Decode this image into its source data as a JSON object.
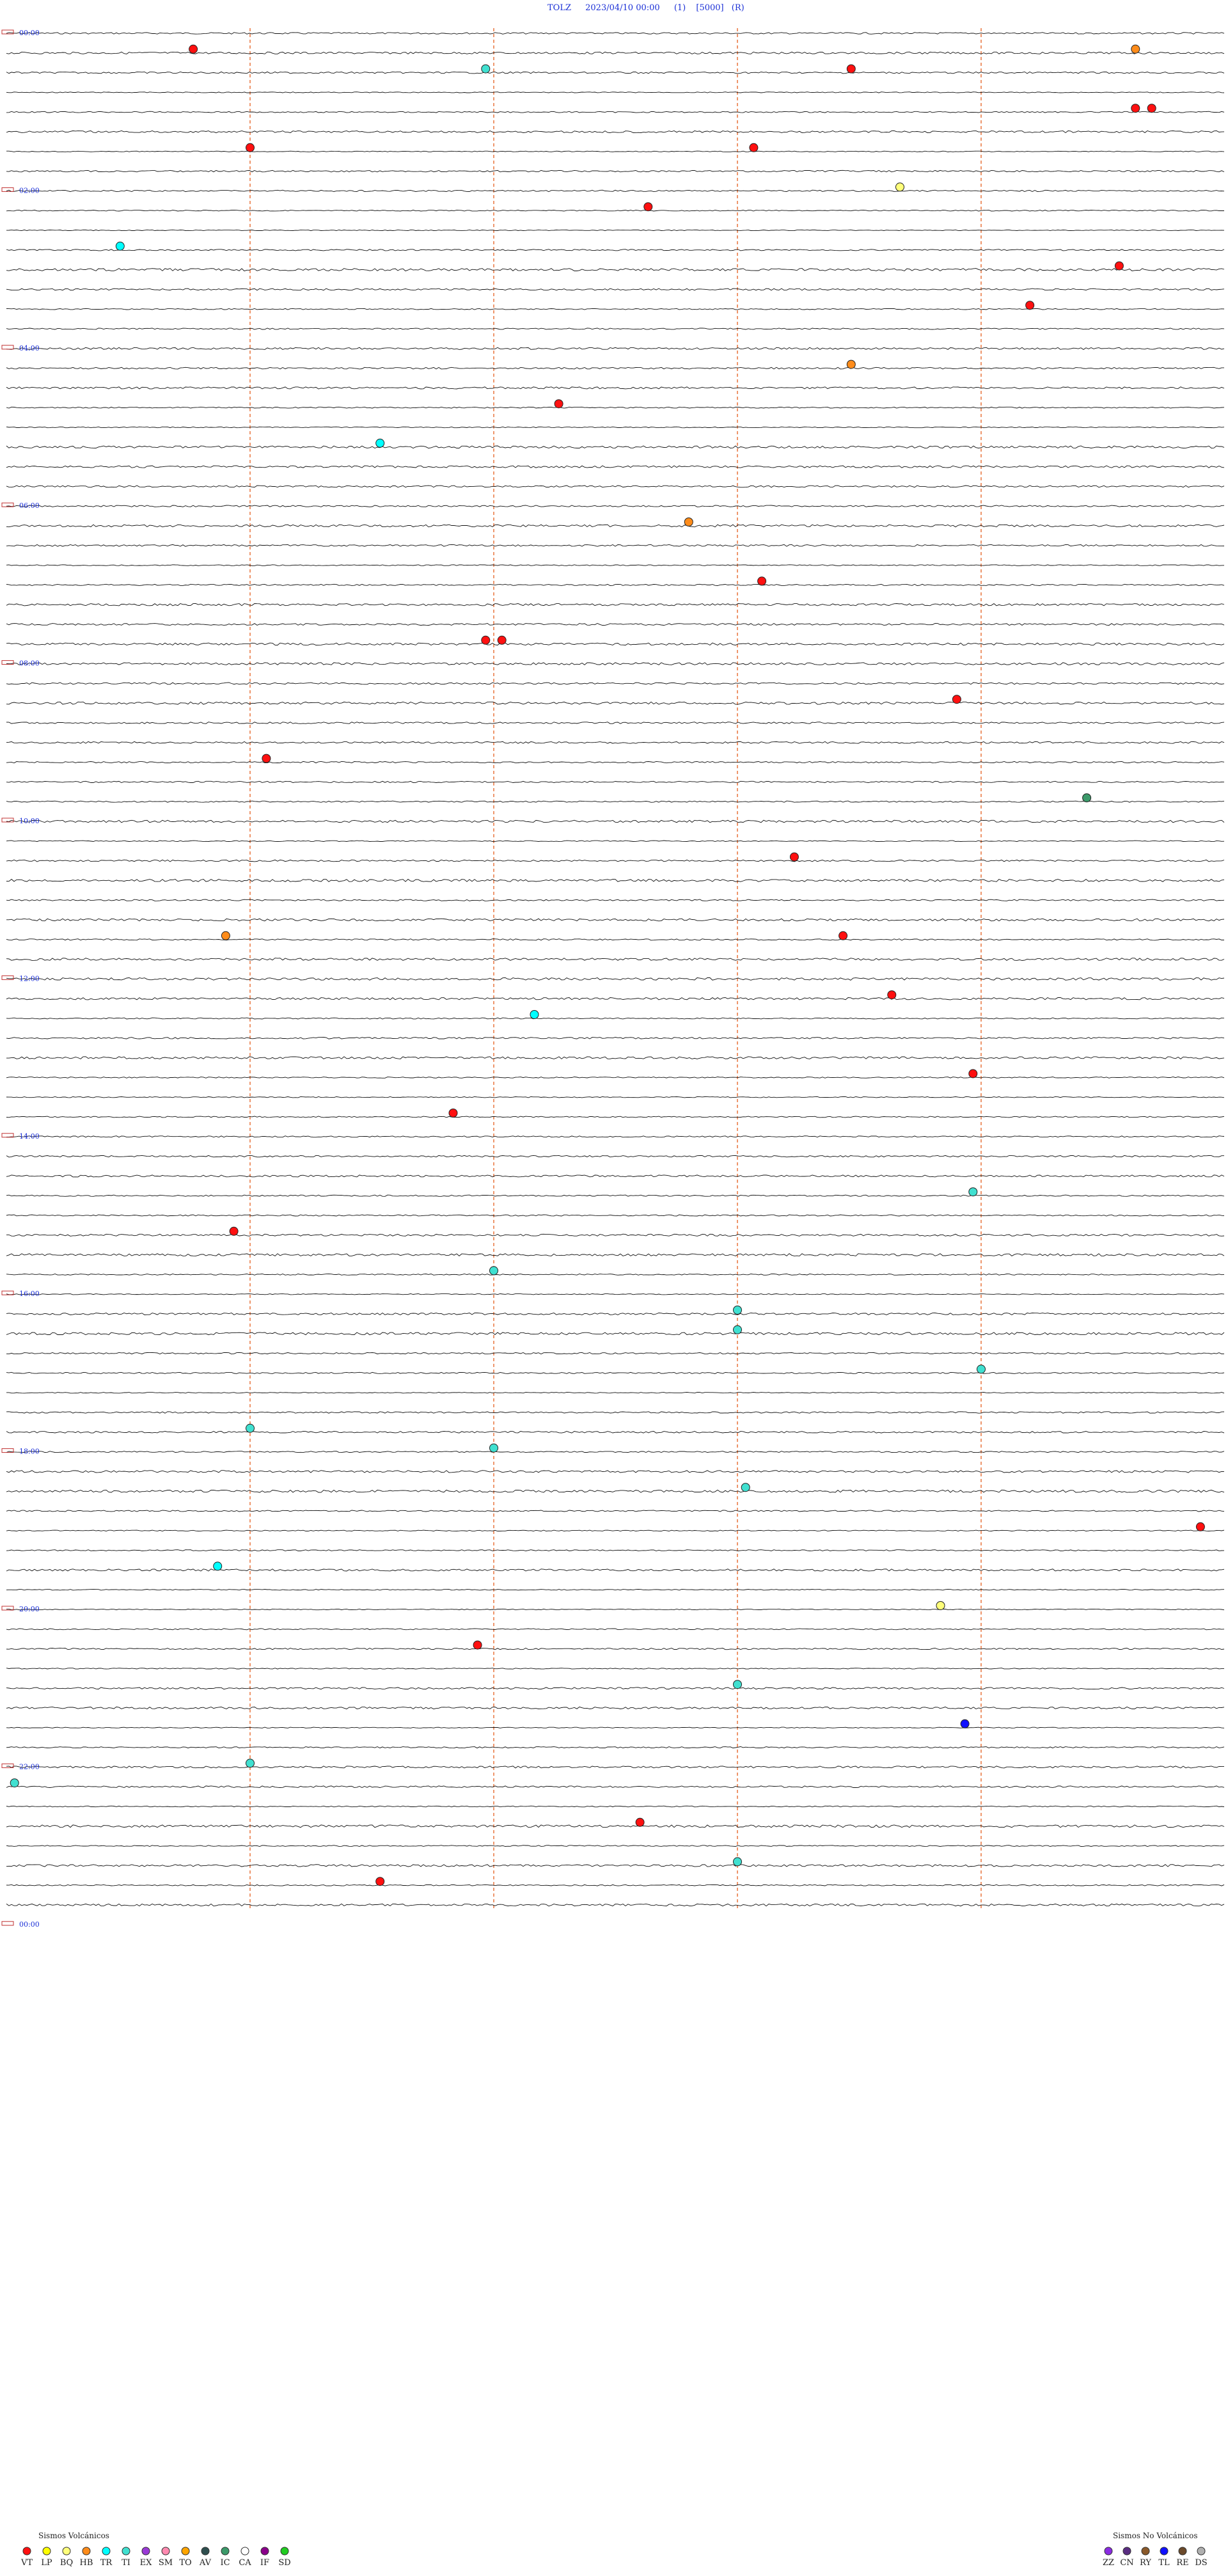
{
  "header": {
    "station": "TOLZ",
    "datetime": "2023/04/10 00:00",
    "flag1": "(1)",
    "scale": "[5000]",
    "flag2": "(R)"
  },
  "chart_data": {
    "type": "helicorder",
    "title": "",
    "xlabel": "",
    "ylabel": "",
    "minutes_per_line": 15,
    "num_lines": 96,
    "hour_labels": [
      "00:00",
      "02:00",
      "04:00",
      "06:00",
      "08:00",
      "10:00",
      "12:00",
      "14:00",
      "16:00",
      "18:00",
      "20:00",
      "22:00",
      "00:00"
    ],
    "minute_markers": [
      3,
      6,
      9,
      12
    ],
    "colors": {
      "trace": "#111111",
      "marker_line": "#e8743b",
      "hour_text": "#1a2fd6",
      "title": "#1a2fd6"
    },
    "events": [
      {
        "line": 1,
        "min": 2.3,
        "type": "VT"
      },
      {
        "line": 1,
        "min": 13.9,
        "type": "HB"
      },
      {
        "line": 2,
        "min": 5.9,
        "type": "TI"
      },
      {
        "line": 2,
        "min": 10.4,
        "type": "VT"
      },
      {
        "line": 4,
        "min": 13.9,
        "type": "VT"
      },
      {
        "line": 4,
        "min": 14.1,
        "type": "VT"
      },
      {
        "line": 6,
        "min": 3.0,
        "type": "VT"
      },
      {
        "line": 6,
        "min": 9.2,
        "type": "VT"
      },
      {
        "line": 8,
        "min": 11.0,
        "type": "BQ"
      },
      {
        "line": 9,
        "min": 7.9,
        "type": "VT"
      },
      {
        "line": 11,
        "min": 1.4,
        "type": "TR"
      },
      {
        "line": 12,
        "min": 13.7,
        "type": "VT"
      },
      {
        "line": 14,
        "min": 12.6,
        "type": "VT"
      },
      {
        "line": 17,
        "min": 10.4,
        "type": "HB"
      },
      {
        "line": 19,
        "min": 6.8,
        "type": "VT"
      },
      {
        "line": 21,
        "min": 4.6,
        "type": "TR"
      },
      {
        "line": 25,
        "min": 8.4,
        "type": "HB"
      },
      {
        "line": 28,
        "min": 9.3,
        "type": "VT"
      },
      {
        "line": 31,
        "min": 5.9,
        "type": "VT"
      },
      {
        "line": 31,
        "min": 6.1,
        "type": "VT"
      },
      {
        "line": 34,
        "min": 11.7,
        "type": "VT"
      },
      {
        "line": 37,
        "min": 3.2,
        "type": "VT"
      },
      {
        "line": 39,
        "min": 13.3,
        "type": "IC"
      },
      {
        "line": 42,
        "min": 9.7,
        "type": "VT"
      },
      {
        "line": 46,
        "min": 2.7,
        "type": "HB"
      },
      {
        "line": 46,
        "min": 10.3,
        "type": "VT"
      },
      {
        "line": 49,
        "min": 10.9,
        "type": "VT"
      },
      {
        "line": 50,
        "min": 6.5,
        "type": "TR"
      },
      {
        "line": 53,
        "min": 11.9,
        "type": "VT"
      },
      {
        "line": 55,
        "min": 5.5,
        "type": "VT"
      },
      {
        "line": 59,
        "min": 11.9,
        "type": "TI"
      },
      {
        "line": 61,
        "min": 2.8,
        "type": "VT"
      },
      {
        "line": 63,
        "min": 6.0,
        "type": "TI"
      },
      {
        "line": 65,
        "min": 9.0,
        "type": "TI"
      },
      {
        "line": 66,
        "min": 9.0,
        "type": "TI"
      },
      {
        "line": 68,
        "min": 12.0,
        "type": "TI"
      },
      {
        "line": 71,
        "min": 3.0,
        "type": "TI"
      },
      {
        "line": 72,
        "min": 6.0,
        "type": "TI"
      },
      {
        "line": 74,
        "min": 9.1,
        "type": "TI"
      },
      {
        "line": 76,
        "min": 14.7,
        "type": "VT"
      },
      {
        "line": 78,
        "min": 2.6,
        "type": "TR"
      },
      {
        "line": 80,
        "min": 11.5,
        "type": "BQ"
      },
      {
        "line": 82,
        "min": 5.8,
        "type": "VT"
      },
      {
        "line": 84,
        "min": 9.0,
        "type": "TI"
      },
      {
        "line": 86,
        "min": 11.8,
        "type": "TL"
      },
      {
        "line": 88,
        "min": 3.0,
        "type": "TI"
      },
      {
        "line": 89,
        "min": 0.1,
        "type": "TI"
      },
      {
        "line": 91,
        "min": 7.8,
        "type": "VT"
      },
      {
        "line": 93,
        "min": 9.0,
        "type": "TI"
      },
      {
        "line": 94,
        "min": 4.6,
        "type": "VT"
      }
    ],
    "legend_volcanic": {
      "title": "Sismos Volcánicos",
      "items": [
        {
          "code": "VT",
          "color": "#ff1010"
        },
        {
          "code": "LP",
          "color": "#ffff00"
        },
        {
          "code": "BQ",
          "color": "#ffff7a"
        },
        {
          "code": "HB",
          "color": "#ff8c1a"
        },
        {
          "code": "TR",
          "color": "#00ffff"
        },
        {
          "code": "TI",
          "color": "#40e0d0"
        },
        {
          "code": "EX",
          "color": "#9a3ad6"
        },
        {
          "code": "SM",
          "color": "#ff8ab0"
        },
        {
          "code": "TO",
          "color": "#ffa500"
        },
        {
          "code": "AV",
          "color": "#2f4f4f"
        },
        {
          "code": "IC",
          "color": "#3c9a6a"
        },
        {
          "code": "CA",
          "color": "#ffffff"
        },
        {
          "code": "IF",
          "color": "#8b008b"
        },
        {
          "code": "SD",
          "color": "#22cc22"
        }
      ]
    },
    "legend_nonvolcanic": {
      "title": "Sismos No Volcánicos",
      "items": [
        {
          "code": "ZZ",
          "color": "#8a2be2"
        },
        {
          "code": "CN",
          "color": "#5a2d82"
        },
        {
          "code": "RY",
          "color": "#8b5a2b"
        },
        {
          "code": "TL",
          "color": "#1010ff"
        },
        {
          "code": "RE",
          "color": "#6b4a2b"
        },
        {
          "code": "DS",
          "color": "#b0b0b0"
        }
      ]
    }
  }
}
